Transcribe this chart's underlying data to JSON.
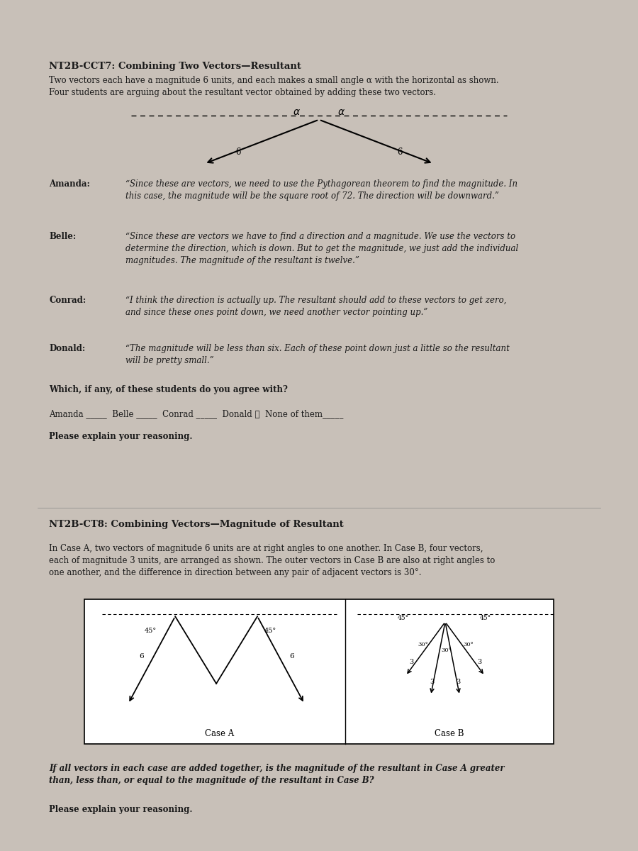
{
  "bg_color": "#c8c0b8",
  "paper_color": "#f0ede8",
  "title1": "NT2B-CCT7: Combining Two Vectors—Resultant",
  "intro1": "Two vectors each have a magnitude 6 units, and each makes a small angle α with the horizontal as shown.\nFour students are arguing about the resultant vector obtained by adding these two vectors.",
  "amanda_label": "Amanda:",
  "amanda_text": "“Since these are vectors, we need to use the Pythagorean theorem to find the magnitude. In\nthis case, the magnitude will be the square root of 72. The direction will be downward.”",
  "belle_label": "Belle:",
  "belle_text": "“Since these are vectors we have to find a direction and a magnitude. We use the vectors to\ndetermine the direction, which is down. But to get the magnitude, we just add the individual\nmagnitudes. The magnitude of the resultant is twelve.”",
  "conrad_label": "Conrad:",
  "conrad_text": "“I think the direction is actually up. The resultant should add to these vectors to get zero,\nand since these ones point down, we need another vector pointing up.”",
  "donald_label": "Donald:",
  "donald_text": "“The magnitude will be less than six. Each of these point down just a little so the resultant\nwill be pretty small.”",
  "question1": "Which, if any, of these students do you agree with?",
  "choices1": "Amanda _____  Belle _____  Conrad _____  Donald ✓  None of them_____",
  "please1": "Please explain your reasoning.",
  "title2": "NT2B-CT8: Combining Vectors—Magnitude of Resultant",
  "intro2": "In Case A, two vectors of magnitude 6 units are at right angles to one another. In Case B, four vectors,\neach of magnitude 3 units, are arranged as shown. The outer vectors in Case B are also at right angles to\none another, and the difference in direction between any pair of adjacent vectors is 30°.",
  "question2": "If all vectors in each case are added together, is the magnitude of the resultant in Case A greater\nthan, less than, or equal to the magnitude of the resultant in Case B?",
  "please2": "Please explain your reasoning."
}
